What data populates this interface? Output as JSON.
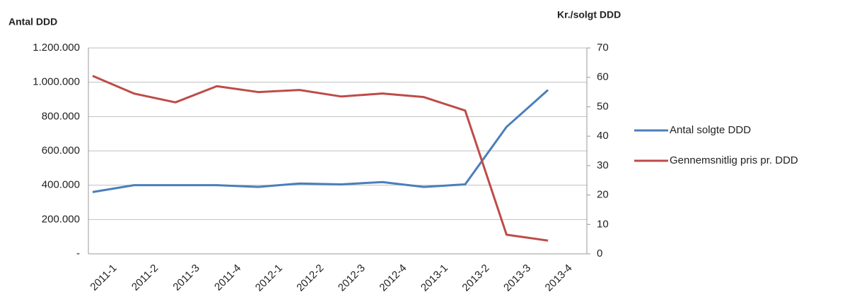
{
  "chart_data": {
    "type": "line",
    "y_label": "Antal DDD",
    "y2_label": "Kr./solgt DDD",
    "categories": [
      "2011-1",
      "2011-2",
      "2011-3",
      "2011-4",
      "2012-1",
      "2012-2",
      "2012-3",
      "2012-4",
      "2013-1",
      "2013-2",
      "2013-3",
      "2013-4"
    ],
    "series": [
      {
        "name": "Antal solgte DDD",
        "color": "#4a7ebb",
        "values": [
          360000,
          400000,
          400000,
          400000,
          390000,
          410000,
          405000,
          418000,
          390000,
          405000,
          740000,
          955000
        ]
      },
      {
        "name": "Gennemsnitlig pris pr. DDD",
        "color": "#be4b48",
        "axis": "y2",
        "values": [
          60.5,
          54.5,
          51.5,
          57,
          55,
          55.7,
          53.5,
          54.5,
          53.3,
          48.7,
          6.5,
          4.5
        ]
      }
    ],
    "ylim": [
      0,
      1200000
    ],
    "yticks": [
      {
        "value": 0,
        "label": "-"
      },
      {
        "value": 200000,
        "label": "200.000"
      },
      {
        "value": 400000,
        "label": "400.000"
      },
      {
        "value": 600000,
        "label": "600.000"
      },
      {
        "value": 800000,
        "label": "800.000"
      },
      {
        "value": 1000000,
        "label": "1.000.000"
      },
      {
        "value": 1200000,
        "label": "1.200.000"
      }
    ],
    "y2lim": [
      0,
      70
    ],
    "y2ticks": [
      0,
      10,
      20,
      30,
      40,
      50,
      60,
      70
    ],
    "grid": true,
    "legend": "right"
  }
}
